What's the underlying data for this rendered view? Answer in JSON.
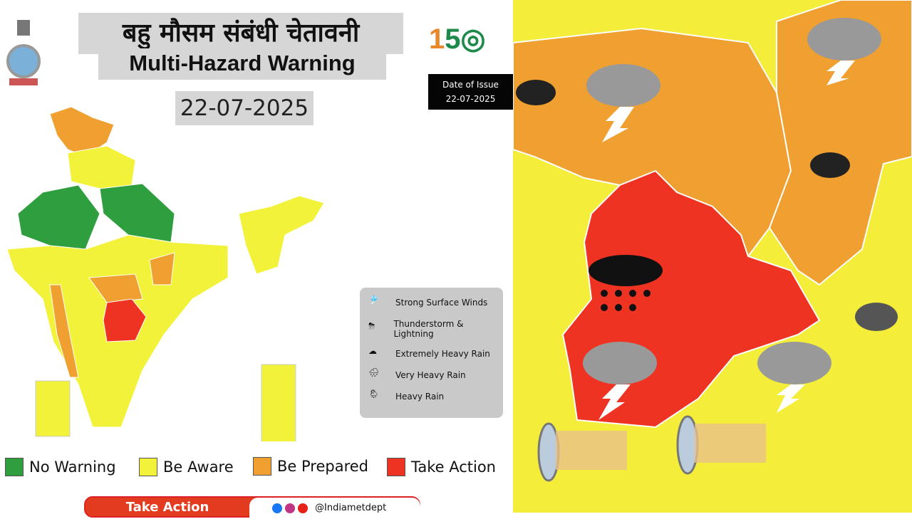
{
  "header": {
    "title_hindi": "बहु मौसम संबंधी चेतावनी",
    "title_english": "Multi-Hazard Warning",
    "date": "22-07-2025"
  },
  "logo": {
    "anniversary": "150"
  },
  "issue": {
    "label": "Date of Issue",
    "date": "22-07-2025"
  },
  "hazard_legend": [
    {
      "label": "Strong Surface Winds",
      "icon": "windsock-icon"
    },
    {
      "label": "Thunderstorm & Lightning",
      "icon": "thunderstorm-icon"
    },
    {
      "label": "Extremely Heavy Rain",
      "icon": "extremely-heavy-rain-icon"
    },
    {
      "label": "Very Heavy Rain",
      "icon": "very-heavy-rain-icon"
    },
    {
      "label": "Heavy Rain",
      "icon": "heavy-rain-icon"
    }
  ],
  "warning_legend": [
    {
      "label": "No Warning",
      "color": "#2e9e3e"
    },
    {
      "label": "Be Aware",
      "color": "#f2f23a"
    },
    {
      "label": "Be Prepared",
      "color": "#f0a030"
    },
    {
      "label": "Take Action",
      "color": "#ee3322"
    }
  ],
  "footer": {
    "action_label": "Take Action",
    "handle": "@Indiametdept"
  }
}
